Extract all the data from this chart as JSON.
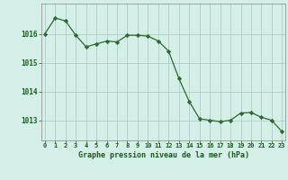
{
  "hours": [
    0,
    1,
    2,
    3,
    4,
    5,
    6,
    7,
    8,
    9,
    10,
    11,
    12,
    13,
    14,
    15,
    16,
    17,
    18,
    19,
    20,
    21,
    22,
    23
  ],
  "pressure": [
    1016.0,
    1016.55,
    1016.45,
    1015.95,
    1015.55,
    1015.65,
    1015.75,
    1015.72,
    1015.95,
    1015.95,
    1015.92,
    1015.75,
    1015.4,
    1014.45,
    1013.65,
    1013.05,
    1013.0,
    1012.95,
    1013.0,
    1013.25,
    1013.27,
    1013.1,
    1013.0,
    1012.6
  ],
  "line_color": "#2d6a2d",
  "marker_color": "#2d6a2d",
  "bg_color": "#d4eee8",
  "grid_color": "#aac8c0",
  "xlabel": "Graphe pression niveau de la mer (hPa)",
  "xlabel_color": "#1a5c1a",
  "tick_color": "#1a5c1a",
  "ylim": [
    1012.3,
    1017.05
  ],
  "yticks": [
    1013,
    1014,
    1015,
    1016
  ],
  "xlim": [
    -0.3,
    23.3
  ]
}
